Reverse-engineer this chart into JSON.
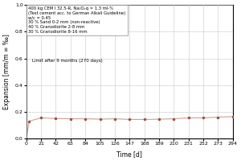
{
  "title": "",
  "xlabel": "Time [d]",
  "ylabel": "Expansion [mm/m = ‰]",
  "xlim": [
    0,
    294
  ],
  "ylim": [
    0.0,
    1.0
  ],
  "xticks": [
    0,
    21,
    42,
    63,
    84,
    105,
    126,
    147,
    168,
    189,
    210,
    231,
    252,
    273,
    294
  ],
  "yticks": [
    0.0,
    0.2,
    0.4,
    0.6,
    0.8,
    1.0
  ],
  "x_data": [
    0,
    4,
    21,
    42,
    63,
    84,
    105,
    126,
    147,
    168,
    189,
    210,
    231,
    252,
    273,
    294
  ],
  "y_data": [
    0.0,
    0.13,
    0.155,
    0.15,
    0.148,
    0.148,
    0.145,
    0.148,
    0.143,
    0.143,
    0.145,
    0.148,
    0.155,
    0.155,
    0.16,
    0.165
  ],
  "line_color": "#c8a090",
  "marker_color": "#9b5040",
  "marker_size": 2.5,
  "line_width": 0.8,
  "annotation_text": "400 kg CEM I 32.5-R, Na₂Oₑq = 1.3 ml-%\n(Test cement acc. to German Alkali Guideline)\nw/c = 0.45\n30 % Sand 0-2 mm (non-reactive)\n40 % Granodiorite 2-8 mm\n30 % Granodiorite 8-16 mm",
  "limit_text": "Limit after 9 months (270 days)",
  "background_color": "#ffffff",
  "grid_color": "#c8c8c8",
  "annotation_fontsize": 3.8,
  "limit_fontsize": 4.0,
  "tick_fontsize": 4.5,
  "label_fontsize": 5.5
}
